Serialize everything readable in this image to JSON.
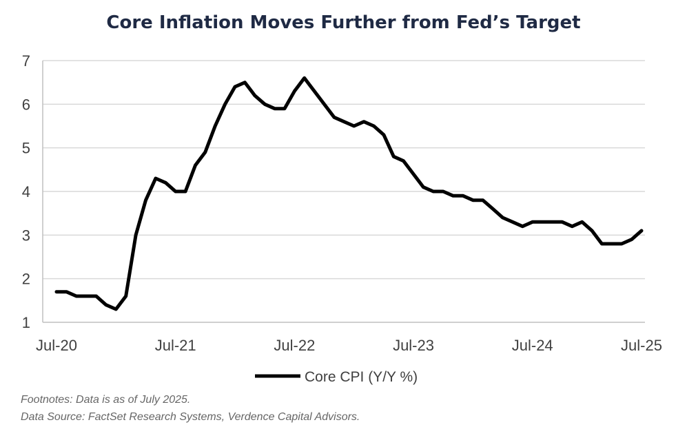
{
  "chart_data": {
    "type": "line",
    "title": "Core Inflation Moves Further from Fed’s Target",
    "xlabel": "",
    "ylabel": "",
    "ylim": [
      1,
      7
    ],
    "yticks": [
      "1",
      "2",
      "3",
      "4",
      "5",
      "6",
      "7"
    ],
    "xtick_labels": [
      "Jul-20",
      "Jul-21",
      "Jul-22",
      "Jul-23",
      "Jul-24",
      "Jul-25"
    ],
    "grid": true,
    "legend_position": "bottom",
    "series": [
      {
        "name": "Core CPI (Y/Y %)",
        "color": "#000000",
        "values": [
          1.7,
          1.7,
          1.6,
          1.6,
          1.6,
          1.4,
          1.3,
          1.6,
          3.0,
          3.8,
          4.3,
          4.2,
          4.0,
          4.0,
          4.6,
          4.9,
          5.5,
          6.0,
          6.4,
          6.5,
          6.2,
          6.0,
          5.9,
          5.9,
          6.3,
          6.6,
          6.3,
          6.0,
          5.7,
          5.6,
          5.5,
          5.6,
          5.5,
          5.3,
          4.8,
          4.7,
          4.4,
          4.1,
          4.0,
          4.0,
          3.9,
          3.9,
          3.8,
          3.8,
          3.6,
          3.4,
          3.3,
          3.2,
          3.3,
          3.3,
          3.3,
          3.3,
          3.2,
          3.3,
          3.1,
          2.8,
          2.8,
          2.8,
          2.9,
          3.1
        ]
      }
    ]
  },
  "footnotes": {
    "line1": "Footnotes: Data is as of July 2025.",
    "line2": "Data Source: FactSet Research Systems, Verdence Capital Advisors."
  }
}
